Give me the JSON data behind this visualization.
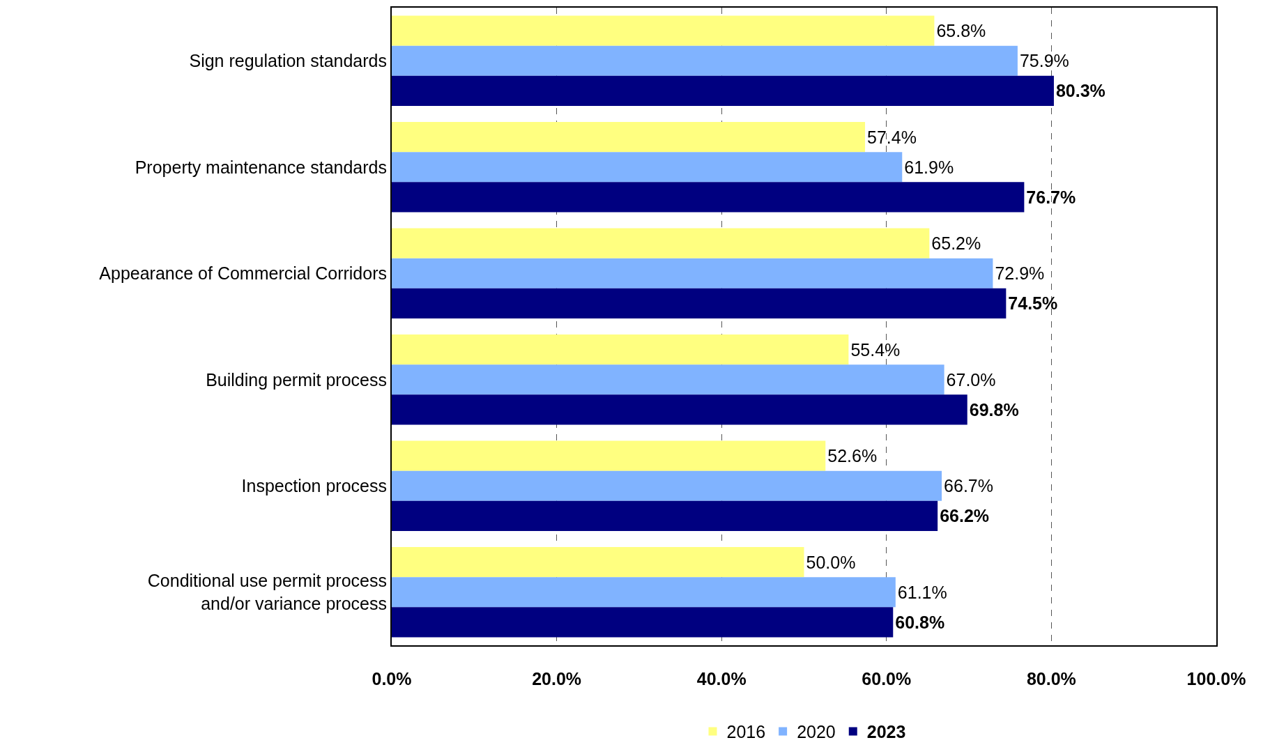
{
  "chart_data": {
    "type": "bar",
    "orientation": "horizontal",
    "categories": [
      "Sign regulation standards",
      "Property maintenance standards",
      "Appearance of Commercial Corridors",
      "Building permit process",
      "Inspection process",
      "Conditional use permit process and/or variance process"
    ],
    "series": [
      {
        "name": "2016",
        "color": "#ffff80",
        "values": [
          65.8,
          57.4,
          65.2,
          55.4,
          52.6,
          50.0
        ],
        "value_labels": [
          "65.8%",
          "57.4%",
          "65.2%",
          "55.4%",
          "52.6%",
          "50.0%"
        ]
      },
      {
        "name": "2020",
        "color": "#80b3ff",
        "values": [
          75.9,
          61.9,
          72.9,
          67.0,
          66.7,
          61.1
        ],
        "value_labels": [
          "75.9%",
          "61.9%",
          "72.9%",
          "67.0%",
          "66.7%",
          "61.1%"
        ]
      },
      {
        "name": "2023",
        "color": "#000080",
        "values": [
          80.3,
          76.7,
          74.5,
          69.8,
          66.2,
          60.8
        ],
        "value_labels": [
          "80.3%",
          "76.7%",
          "74.5%",
          "69.8%",
          "66.2%",
          "60.8%"
        ]
      }
    ],
    "xlim": [
      0,
      100
    ],
    "xticks": [
      {
        "value": 0,
        "label": "0.0%"
      },
      {
        "value": 20,
        "label": "20.0%"
      },
      {
        "value": 40,
        "label": "40.0%"
      },
      {
        "value": 60,
        "label": "60.0%"
      },
      {
        "value": 80,
        "label": "80.0%"
      },
      {
        "value": 100,
        "label": "100.0%"
      }
    ],
    "grid": "x",
    "legend": "bottom"
  }
}
